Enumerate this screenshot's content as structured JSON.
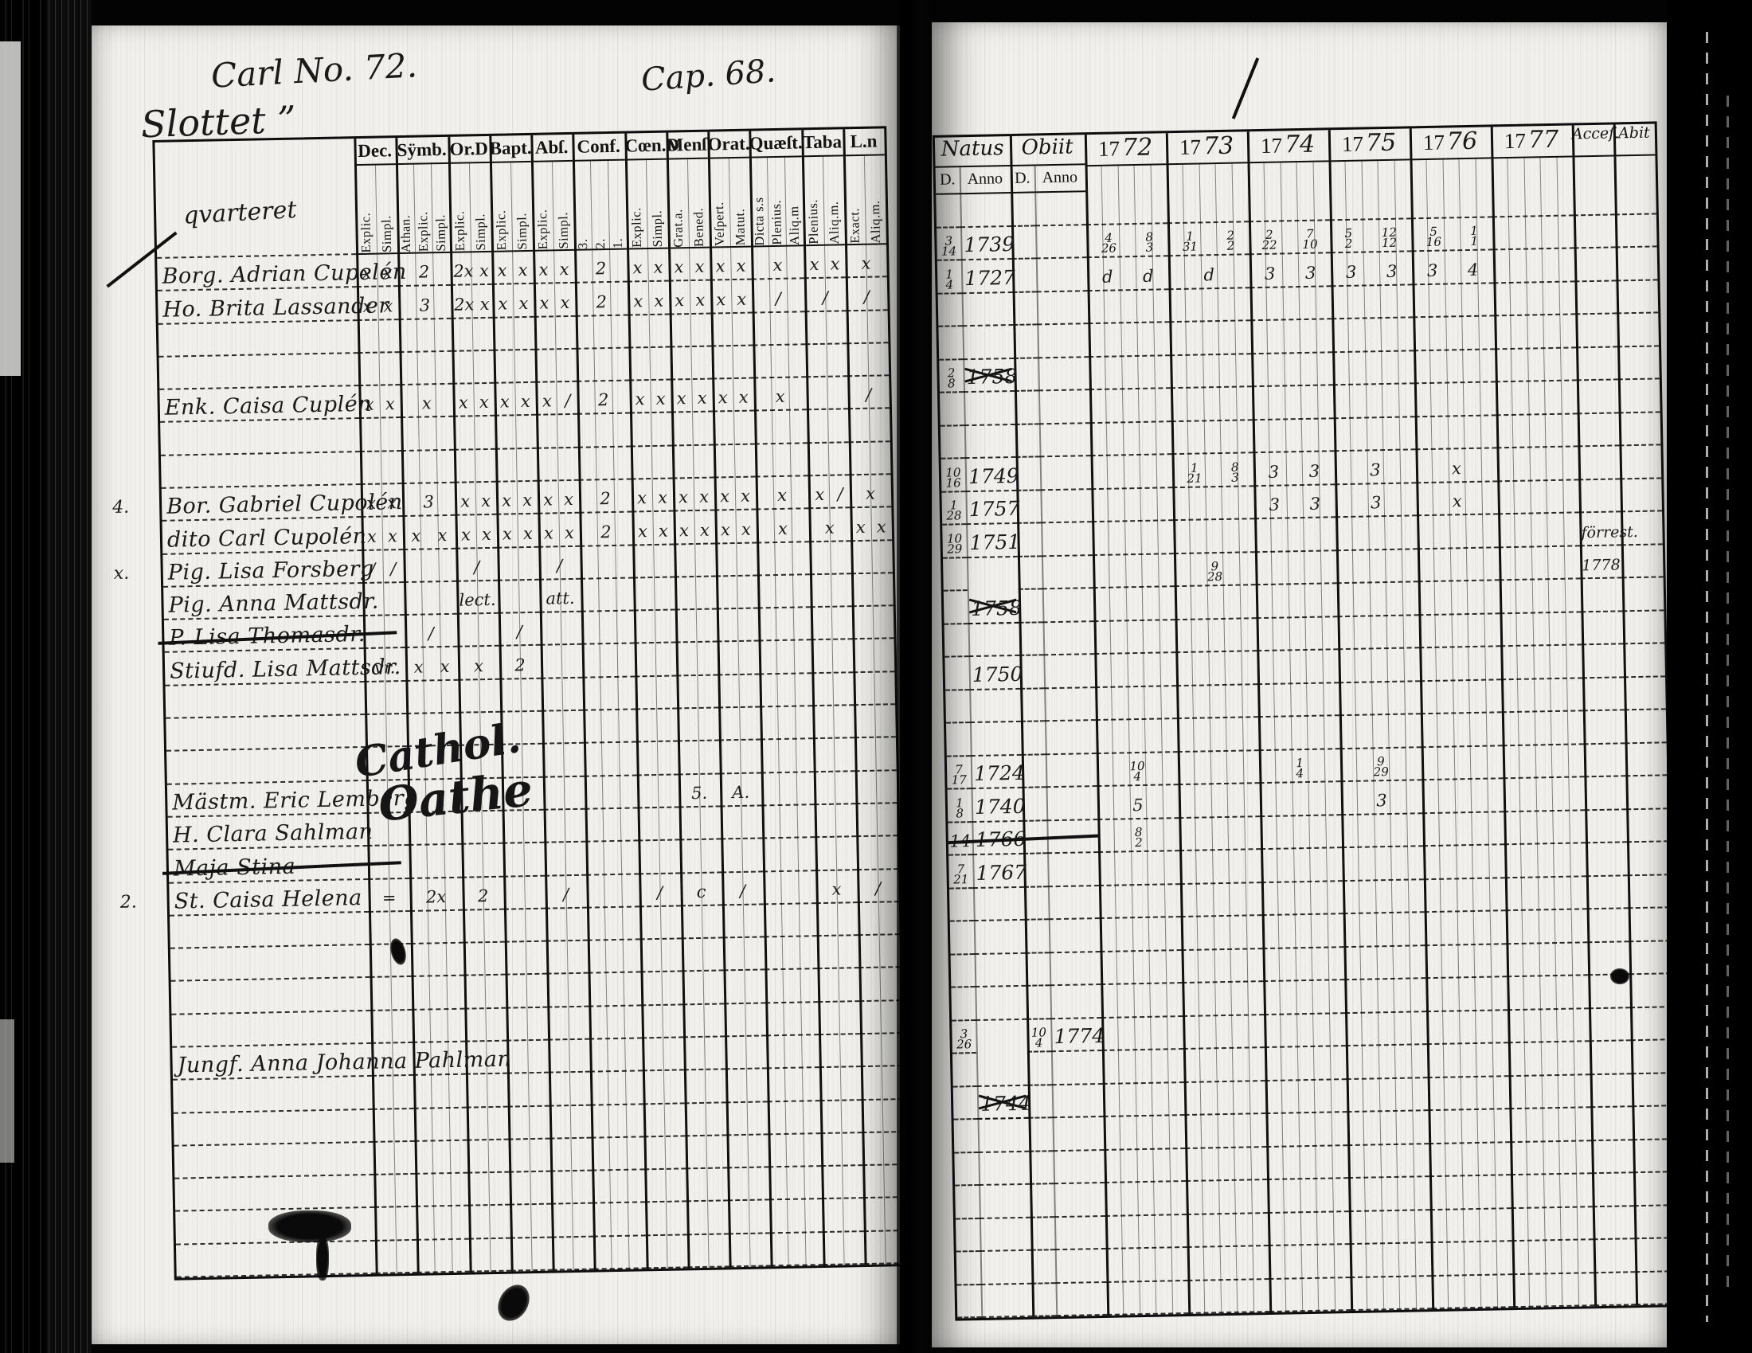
{
  "page": {
    "header_left": "Carl No. 72.",
    "header_center": "Cap. 68.",
    "district_title": "Slottet ”",
    "district_sub": "qvarteret",
    "ink_color": "#141414",
    "paper_color": "#f1f0ec"
  },
  "left_table": {
    "groups": [
      {
        "label": "Dec.",
        "subs": [
          "Explic.",
          "Simpl."
        ]
      },
      {
        "label": "Sÿmb.",
        "subs": [
          "Athan.",
          "Explic.",
          "Simpl."
        ]
      },
      {
        "label": "Or.D",
        "subs": [
          "Explic.",
          "Simpl."
        ]
      },
      {
        "label": "Bapt.",
        "subs": [
          "Explic.",
          "Simpl."
        ]
      },
      {
        "label": "Abſ.",
        "subs": [
          "Explic.",
          "Simpl."
        ]
      },
      {
        "label": "Conf.",
        "subs": [
          "3.",
          "2.",
          "1."
        ]
      },
      {
        "label": "Cœn.D",
        "subs": [
          "Explic.",
          "Simpl."
        ]
      },
      {
        "label": "Menſ.",
        "subs": [
          "Grat.a.",
          "Bened."
        ]
      },
      {
        "label": "Orat.",
        "subs": [
          "Veſpert.",
          "Matut."
        ]
      },
      {
        "label": "Quæſt.",
        "subs": [
          "Dicta s.s",
          "Plenius.",
          "Aliq.m"
        ]
      },
      {
        "label": "Taba",
        "subs": [
          "Plenius.",
          "Aliq.m."
        ]
      },
      {
        "label": "L.n",
        "subs": [
          "Exact.",
          "Aliq.m."
        ]
      }
    ],
    "rows": [
      {
        "name": "Borg. Adrian Cupelén",
        "marks": [
          "x x",
          "2",
          "2x x",
          "x x",
          "x x",
          "2",
          "x x",
          "x x",
          "x x",
          "x",
          "x x",
          "x"
        ]
      },
      {
        "name": "Ho. Brita Lassander",
        "marks": [
          "x x",
          "3",
          "2x x",
          "x x",
          "x x",
          "2",
          "x x",
          "x x",
          "x x",
          "/",
          "/",
          "/"
        ]
      },
      {},
      {},
      {
        "name": "Enk. Caisa Cuplén",
        "marks": [
          "x x",
          "x",
          "x x",
          "x x",
          "x /",
          "2",
          "x x",
          "x x",
          "x x",
          "x",
          "",
          "/"
        ]
      },
      {},
      {},
      {
        "margin": "4.",
        "name": "Bor. Gabriel Cupolén",
        "marks": [
          "x x",
          "3",
          "x x",
          "x x",
          "x x",
          "2",
          "x x",
          "x x",
          "x x",
          "x",
          "x /",
          "x"
        ]
      },
      {
        "name": "dito Carl Cupolén",
        "marks": [
          "x x",
          "x x",
          "x x",
          "x x",
          "x x",
          "2",
          "x x",
          "x x",
          "x x",
          "x",
          "x",
          "x x"
        ]
      },
      {
        "margin": "x.",
        "name": "Pig. Lisa Forsberg",
        "marks": [
          "/ /",
          "",
          "/",
          "",
          "/",
          "",
          "",
          "",
          "",
          "",
          "",
          ""
        ]
      },
      {
        "name": "Pig. Anna Mattsdr.",
        "marks": [
          "",
          "",
          "lect.",
          "",
          "att.",
          "",
          "",
          "",
          "",
          "",
          "",
          ""
        ]
      },
      {
        "name": "P. Lisa Thomasdr.",
        "struck": true,
        "marks": [
          "",
          "/",
          "",
          "/",
          "",
          "",
          "",
          "",
          "",
          "",
          "",
          ""
        ]
      },
      {
        "name": "Stiufd. Lisa Mattsdr.",
        "marks": [
          "vr.",
          "x x",
          "x",
          "2",
          "",
          "",
          "",
          "",
          "",
          "",
          "",
          ""
        ]
      },
      {},
      {},
      {},
      {
        "name": "Mästm. Eric Lemberg",
        "marks": [
          "",
          "",
          "",
          "",
          "",
          "",
          "",
          "5.",
          "A.",
          "",
          "",
          ""
        ]
      },
      {
        "name": "H. Clara Sahlman",
        "marks": [
          "",
          "",
          "",
          "",
          "",
          "",
          "",
          "",
          "",
          "",
          "",
          ""
        ]
      },
      {
        "name": "Maja Stina",
        "struck": true,
        "marks": [
          "",
          "",
          "",
          "",
          "",
          "",
          "",
          "",
          "",
          "",
          "",
          ""
        ]
      },
      {
        "margin": "2.",
        "name": "St. Caisa Helena",
        "marks": [
          "=",
          "2x",
          "2",
          "",
          "/",
          "",
          "/",
          "c",
          "/",
          "",
          "x",
          "/"
        ]
      },
      {},
      {},
      {},
      {},
      {
        "name": "Jungf. Anna Johanna Pahlman",
        "marks": [
          "",
          "",
          "",
          "",
          "",
          "",
          "",
          "",
          "",
          "",
          "",
          ""
        ]
      },
      {},
      {},
      {},
      {},
      {},
      {}
    ]
  },
  "right_table": {
    "natus_label": "Natus",
    "obiit_label": "Obiit",
    "day_label": "D.",
    "anno_label": "Anno",
    "year_prefix": "17",
    "years": [
      "72",
      "73",
      "74",
      "75",
      "76",
      "77"
    ],
    "acces_label": "Acceſ.",
    "abit_label": "Abit",
    "rows": [
      {},
      {
        "natus_d": "3/14",
        "natus_anno": "1739",
        "years": [
          "4/26 8/3",
          "1/31 2/2",
          "2/22 7/10",
          "5/2 12/12",
          "5/16 1/1",
          ""
        ]
      },
      {
        "natus_d": "1/4",
        "natus_anno": "1727",
        "years": [
          "d d",
          "d",
          "3 3",
          "3 3",
          "3 4",
          ""
        ]
      },
      {},
      {},
      {
        "natus_d": "2/8",
        "natus_anno": "1758",
        "natus_struck": true
      },
      {},
      {},
      {
        "natus_d": "10/16",
        "natus_anno": "1749",
        "years": [
          "",
          "1/21 8/3",
          "3 3",
          "3",
          "x",
          ""
        ]
      },
      {
        "natus_d": "1/28",
        "natus_anno": "1757",
        "years": [
          "",
          "",
          "3 3",
          "3",
          "x",
          ""
        ]
      },
      {
        "natus_d": "10/29",
        "natus_anno": "1751",
        "acces": "förrest."
      },
      {
        "natus_anno": "1758",
        "natus_struck": true,
        "years": [
          "",
          "9/28",
          "",
          "",
          "",
          ""
        ],
        "acces": "1778"
      },
      {},
      {},
      {
        "natus_anno": "1750"
      },
      {},
      {},
      {
        "natus_d": "7/17",
        "natus_anno": "1724",
        "years": [
          "10/4",
          "",
          "1/4",
          "9/29",
          "",
          ""
        ]
      },
      {
        "natus_d": "1/8",
        "natus_anno": "1740",
        "years": [
          "5",
          "",
          "",
          "3",
          "",
          ""
        ]
      },
      {
        "natus_d": "14",
        "natus_anno": "1766",
        "struck": true,
        "years": [
          "8/2",
          "",
          "",
          "",
          "",
          ""
        ]
      },
      {
        "natus_d": "7/21",
        "natus_anno": "1767"
      },
      {},
      {},
      {},
      {},
      {
        "natus_d": "3/26",
        "natus_anno": "1744",
        "natus_struck": true,
        "obiit_d": "10/4",
        "obiit_anno": "1774"
      },
      {},
      {},
      {},
      {},
      {},
      {},
      {},
      {}
    ]
  },
  "annotations": {
    "scrawl_1": "Cathol.",
    "scrawl_2": "Oathe"
  }
}
